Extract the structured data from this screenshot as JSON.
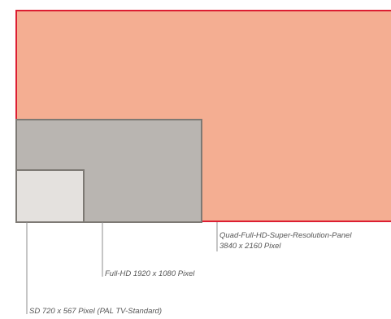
{
  "colors": {
    "background": "#ffffff",
    "quad_fill": "#f4ae92",
    "quad_border": "#dc1e32",
    "fullhd_fill": "#b9b5b1",
    "fullhd_border": "#7d7974",
    "sd_fill": "#e4e1de",
    "sd_border": "#7d7974",
    "leader_line": "#8c8c8c",
    "label_text": "#555555"
  },
  "rectangles": {
    "quad": {
      "name": "Quad-Full-HD-Super-Resolution-Panel",
      "resolution": "3840 x 2160 Pixel"
    },
    "fullhd": {
      "name": "Full-HD",
      "resolution": "1920 x 1080 Pixel"
    },
    "sd": {
      "name": "SD",
      "resolution": "720 x 567 Pixel (PAL TV-Standard)"
    }
  },
  "labels": {
    "quad_line1": "Quad-Full-HD-Super-Resolution-Panel",
    "quad_line2": "3840 x 2160 Pixel",
    "fullhd": "Full-HD 1920 x 1080 Pixel",
    "sd": "SD 720 x 567 Pixel (PAL TV-Standard)"
  }
}
